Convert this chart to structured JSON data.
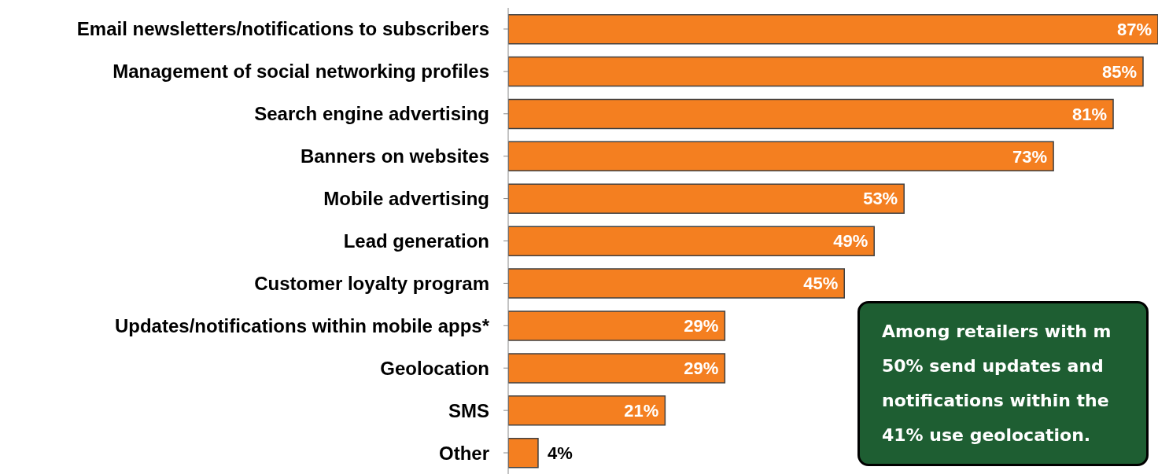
{
  "chart_data": {
    "type": "bar",
    "orientation": "horizontal",
    "categories": [
      "Email newsletters/notifications to subscribers",
      "Management of social networking profiles",
      "Search engine advertising",
      "Banners on websites",
      "Mobile advertising",
      "Lead generation",
      "Customer loyalty program",
      "Updates/notifications within mobile apps*",
      "Geolocation",
      "SMS",
      "Other"
    ],
    "values": [
      87,
      85,
      81,
      73,
      53,
      49,
      45,
      29,
      29,
      21,
      4
    ],
    "value_labels": [
      "87%",
      "85%",
      "81%",
      "73%",
      "53%",
      "49%",
      "45%",
      "29%",
      "29%",
      "21%",
      "4%"
    ],
    "color": "#f47f20",
    "annotations": [
      "Among retailers with m\n50% send updates and\nnotifications within the\n41% use geolocation."
    ]
  }
}
